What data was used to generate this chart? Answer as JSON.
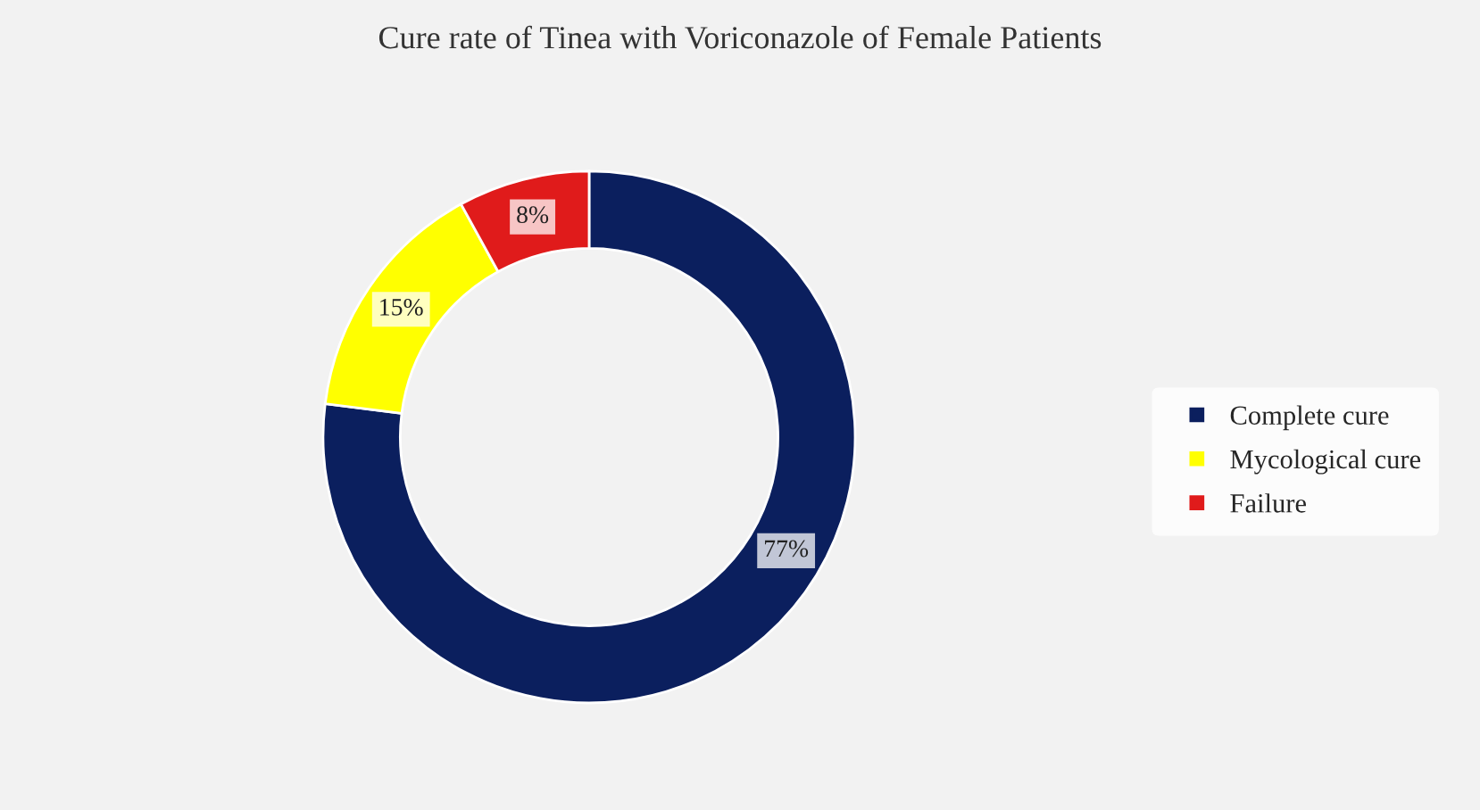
{
  "chart_data": {
    "type": "donut",
    "title": "Cure rate of Tinea with Voriconazole of Female Patients",
    "categories": [
      "Complete cure",
      "Mycological cure",
      "Failure"
    ],
    "values": [
      77,
      15,
      8
    ],
    "colors": [
      "#0b1f5e",
      "#ffff00",
      "#e01b1b"
    ],
    "value_labels": [
      "77%",
      "15%",
      "8%"
    ],
    "legend": "right"
  }
}
